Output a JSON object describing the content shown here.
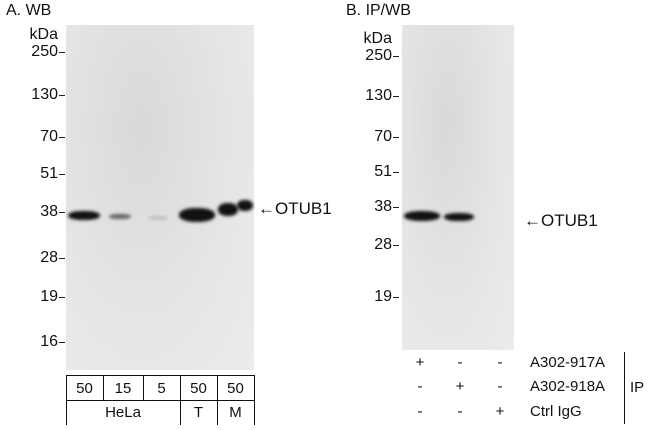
{
  "panel_a": {
    "title": "A. WB",
    "unit": "kDa",
    "markers": [
      "250",
      "130",
      "70",
      "51",
      "38",
      "28",
      "19",
      "16"
    ],
    "target": "OTUB1",
    "amounts": [
      "50",
      "15",
      "5",
      "50",
      "50"
    ],
    "samples": [
      "HeLa",
      "T",
      "M"
    ]
  },
  "panel_b": {
    "title": "B. IP/WB",
    "unit": "kDa",
    "markers": [
      "250",
      "130",
      "70",
      "51",
      "38",
      "28",
      "19"
    ],
    "target": "OTUB1",
    "rows": [
      {
        "label": "A302-917A",
        "signs": [
          "+",
          "-",
          "-"
        ]
      },
      {
        "label": "A302-918A",
        "signs": [
          "-",
          "+",
          "-"
        ]
      },
      {
        "label": "Ctrl IgG",
        "signs": [
          "-",
          "-",
          "+"
        ]
      }
    ],
    "ip_label": "IP"
  }
}
